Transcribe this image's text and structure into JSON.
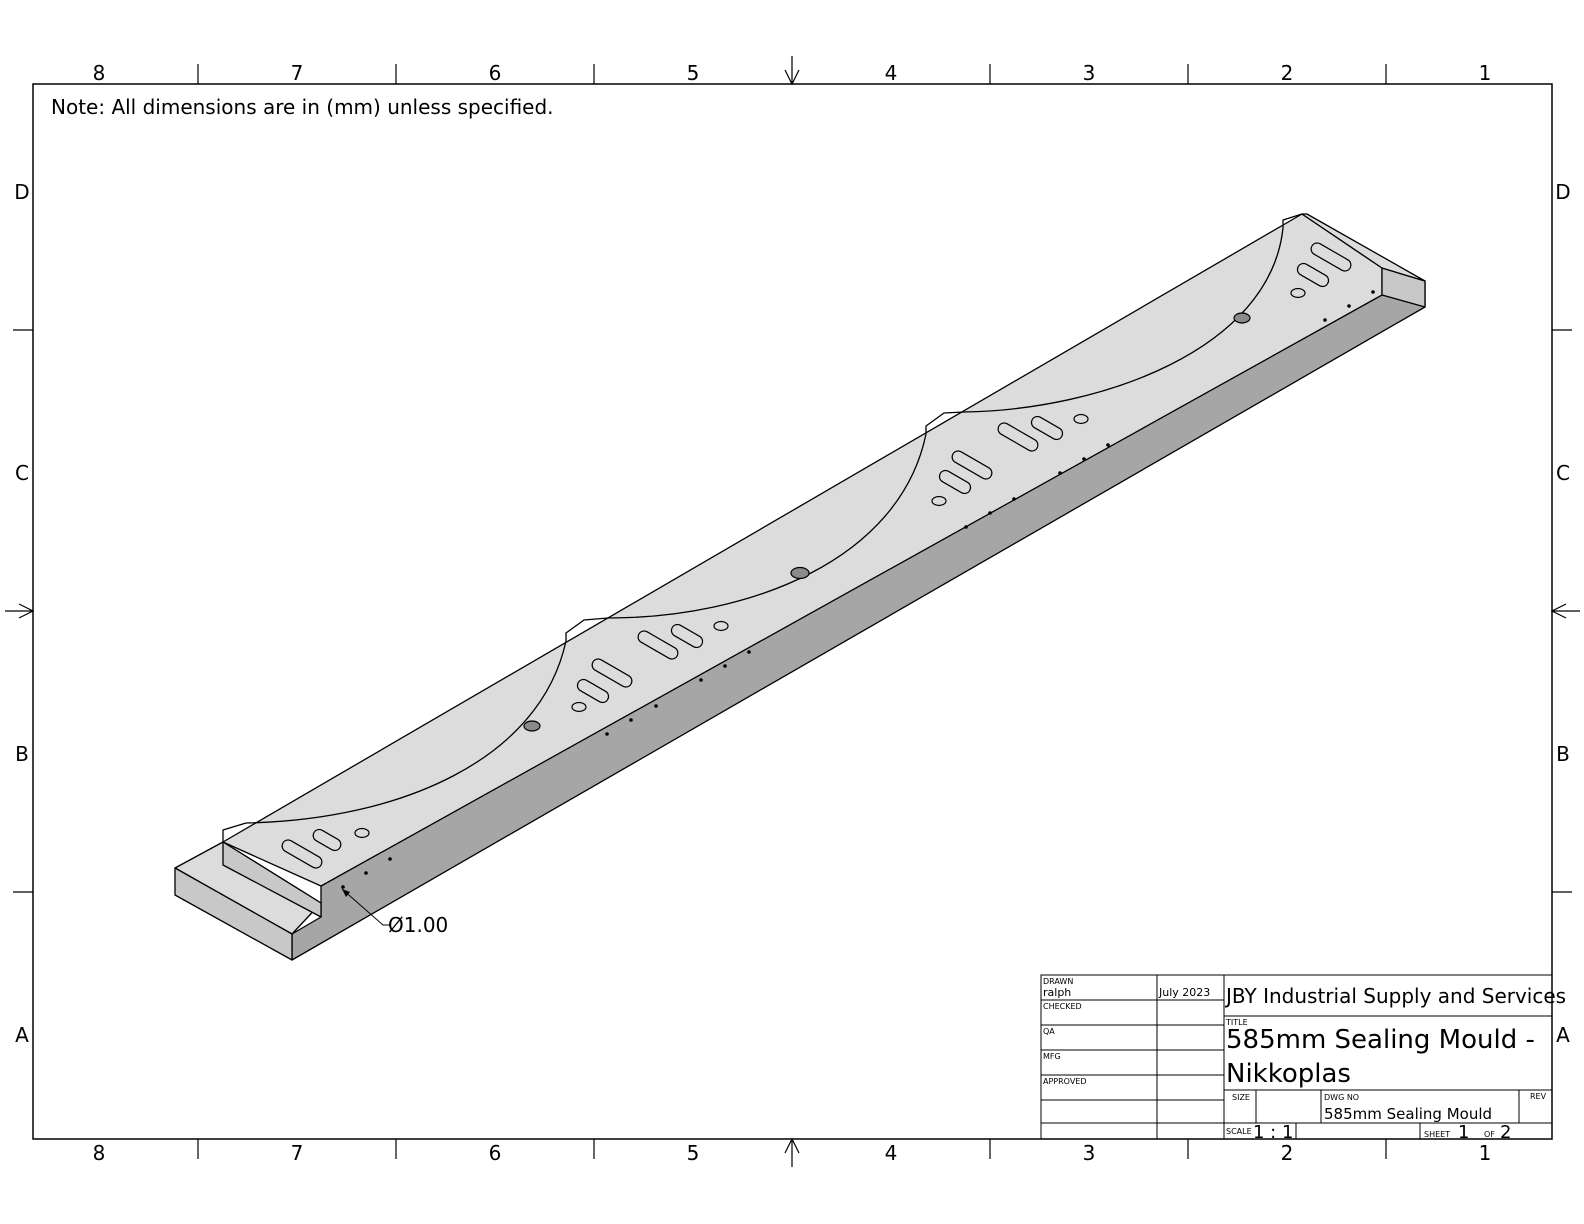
{
  "note": "Note: All dimensions are in (mm) unless specified.",
  "zones": {
    "columns": [
      "8",
      "7",
      "6",
      "5",
      "4",
      "3",
      "2",
      "1"
    ],
    "rows": [
      "D",
      "C",
      "B",
      "A"
    ]
  },
  "dimension": "Ø1.00",
  "title_block": {
    "drawn_label": "DRAWN",
    "drawn_by": "ralph",
    "drawn_date": "July 2023",
    "checked_label": "CHECKED",
    "qa_label": "QA",
    "mfg_label": "MFG",
    "approved_label": "APPROVED",
    "company": "JBY Industrial Supply and Services",
    "title_label": "TITLE",
    "title_line1": "585mm Sealing Mould -",
    "title_line2": "Nikkoplas",
    "size_label": "SIZE",
    "dwg_no_label": "DWG NO",
    "dwg_no": "585mm Sealing Mould",
    "rev_label": "REV",
    "scale_label": "SCALE",
    "scale": "1 : 1",
    "sheet_label": "SHEET",
    "sheet_no": "1",
    "of_label": "OF",
    "sheet_total": "2"
  },
  "colors": {
    "top_face": "#dcdcdc",
    "side_face": "#a6a6a6",
    "end_face": "#c8c8c8",
    "hole": "#8a8a8a",
    "line": "#000000"
  }
}
